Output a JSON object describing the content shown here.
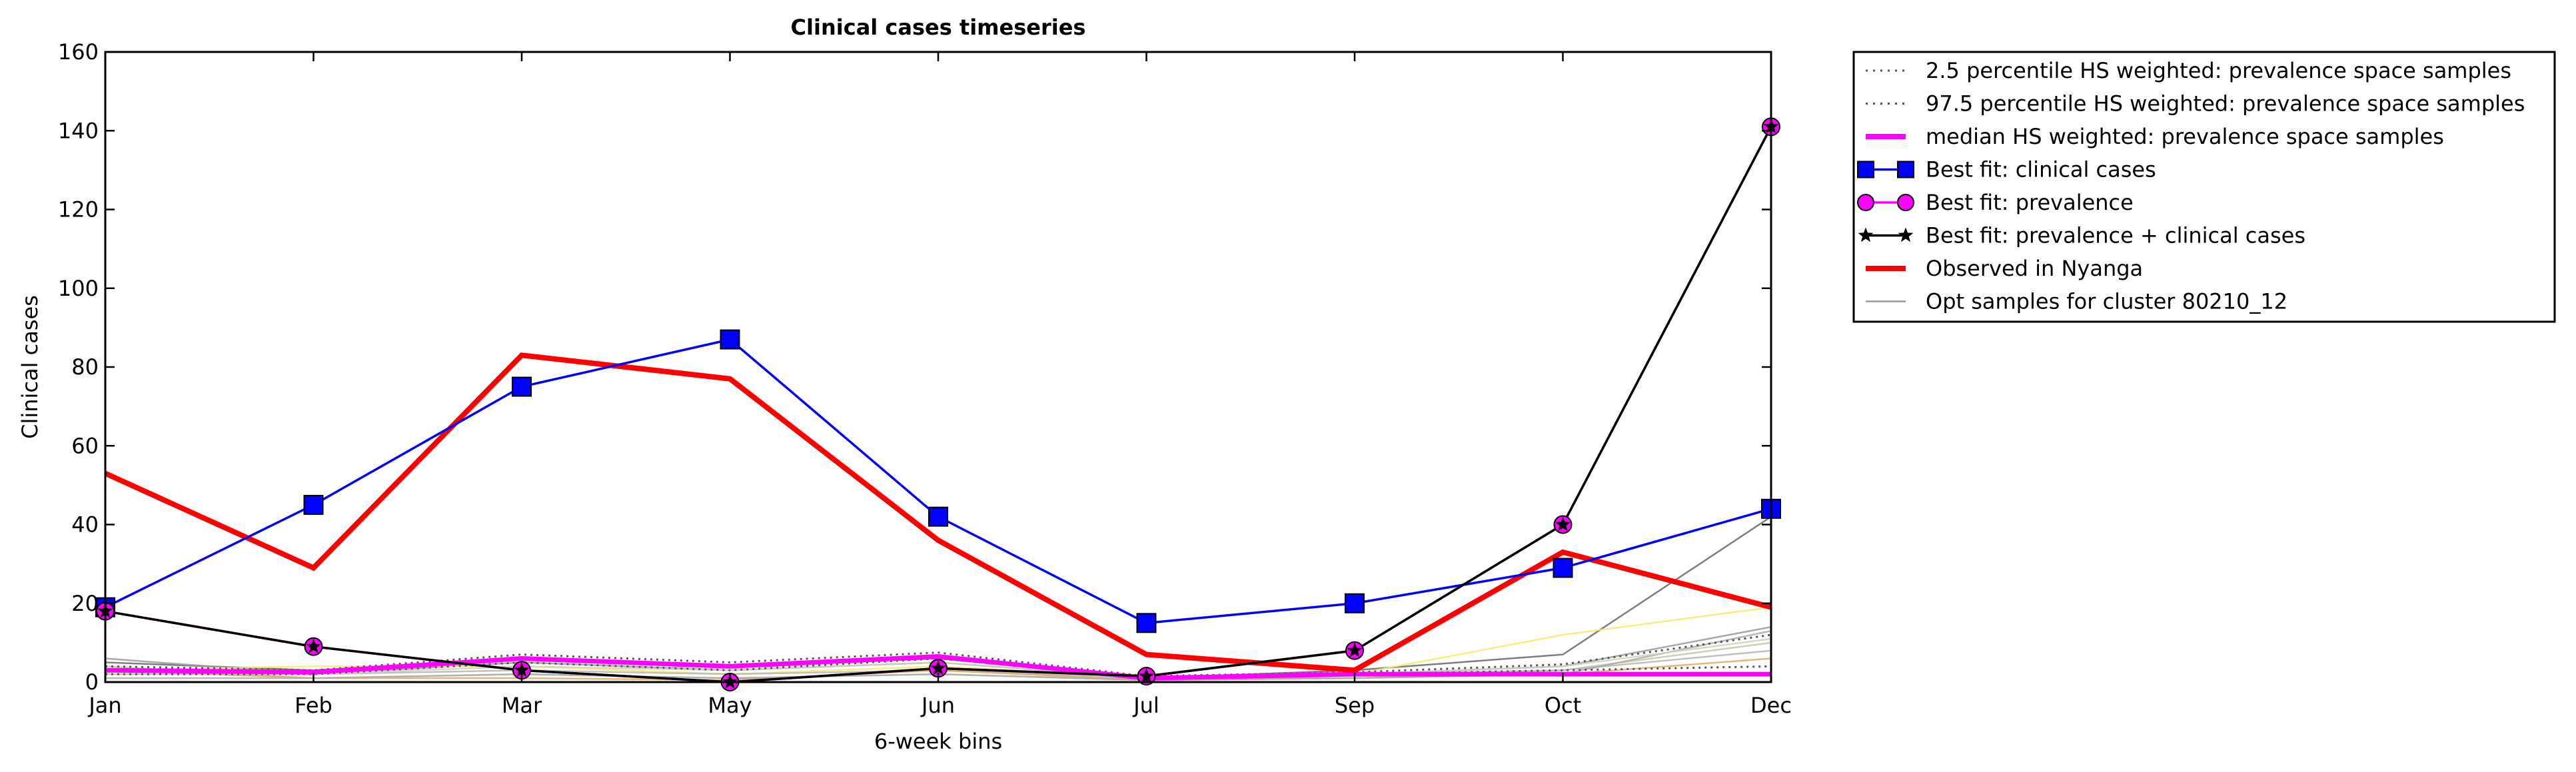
{
  "chart_data": {
    "type": "line",
    "title": "Clinical cases timeseries",
    "xlabel": "6-week bins",
    "ylabel": "Clinical cases",
    "categories": [
      "Jan",
      "Feb",
      "Mar",
      "May",
      "Jun",
      "Jul",
      "Sep",
      "Oct",
      "Dec"
    ],
    "ylim": [
      0,
      160
    ],
    "yticks": [
      0,
      20,
      40,
      60,
      80,
      100,
      120,
      140,
      160
    ],
    "grid": false,
    "legend_position": "outside-right-top",
    "series": [
      {
        "name": "2.5 percentile HS weighted: prevalence space samples",
        "style": "dotted",
        "color": "#555555",
        "values": [
          2,
          2,
          5,
          3,
          6,
          1,
          2,
          3,
          4
        ]
      },
      {
        "name": "97.5 percentile HS weighted: prevalence space samples",
        "style": "dotted",
        "color": "#555555",
        "values": [
          4,
          3,
          7,
          5,
          7.5,
          1.5,
          2.5,
          4.5,
          12
        ]
      },
      {
        "name": "median HS weighted: prevalence space samples",
        "style": "solid-thick",
        "color": "#ff00ff",
        "values": [
          3,
          2.5,
          6,
          4,
          6.5,
          1,
          2,
          2,
          2
        ]
      },
      {
        "name": "Best fit: clinical cases",
        "style": "square-markers",
        "color": "#0000ff",
        "values": [
          19,
          45,
          75,
          87,
          42,
          15,
          20,
          29,
          44
        ]
      },
      {
        "name": "Best fit: prevalence",
        "style": "circle-markers",
        "color": "#ff00ff",
        "values": [
          18,
          9,
          3,
          0,
          3.5,
          1.5,
          8,
          40,
          141
        ]
      },
      {
        "name": "Best fit: prevalence + clinical cases",
        "style": "star-markers",
        "color": "#000000",
        "values": [
          18,
          9,
          3,
          0,
          3.5,
          1.5,
          8,
          40,
          141
        ]
      },
      {
        "name": "Observed in Nyanga",
        "style": "solid-thick",
        "color": "#ff0000",
        "values": [
          53,
          29,
          83,
          77,
          36,
          7,
          3,
          33,
          19
        ]
      },
      {
        "name": "Opt samples for cluster 80210_12",
        "style": "thin",
        "color": "#999999",
        "samples": [
          [
            5,
            3,
            6,
            4,
            6,
            1,
            3,
            7,
            42
          ],
          [
            6,
            2,
            5,
            3,
            5,
            1,
            2,
            4,
            14
          ],
          [
            3,
            4,
            4,
            2,
            4,
            1,
            2,
            12,
            19
          ],
          [
            4,
            1,
            2,
            1,
            2,
            0.5,
            1,
            3,
            10
          ],
          [
            2,
            2,
            3,
            2,
            3,
            1,
            2,
            3,
            8
          ],
          [
            3,
            1,
            1,
            0.5,
            3,
            0.5,
            1,
            2,
            6
          ],
          [
            1,
            1,
            2,
            1,
            2,
            0.5,
            1,
            2,
            13
          ],
          [
            3,
            2,
            4,
            3,
            5,
            1,
            2,
            4,
            11
          ]
        ]
      }
    ]
  }
}
